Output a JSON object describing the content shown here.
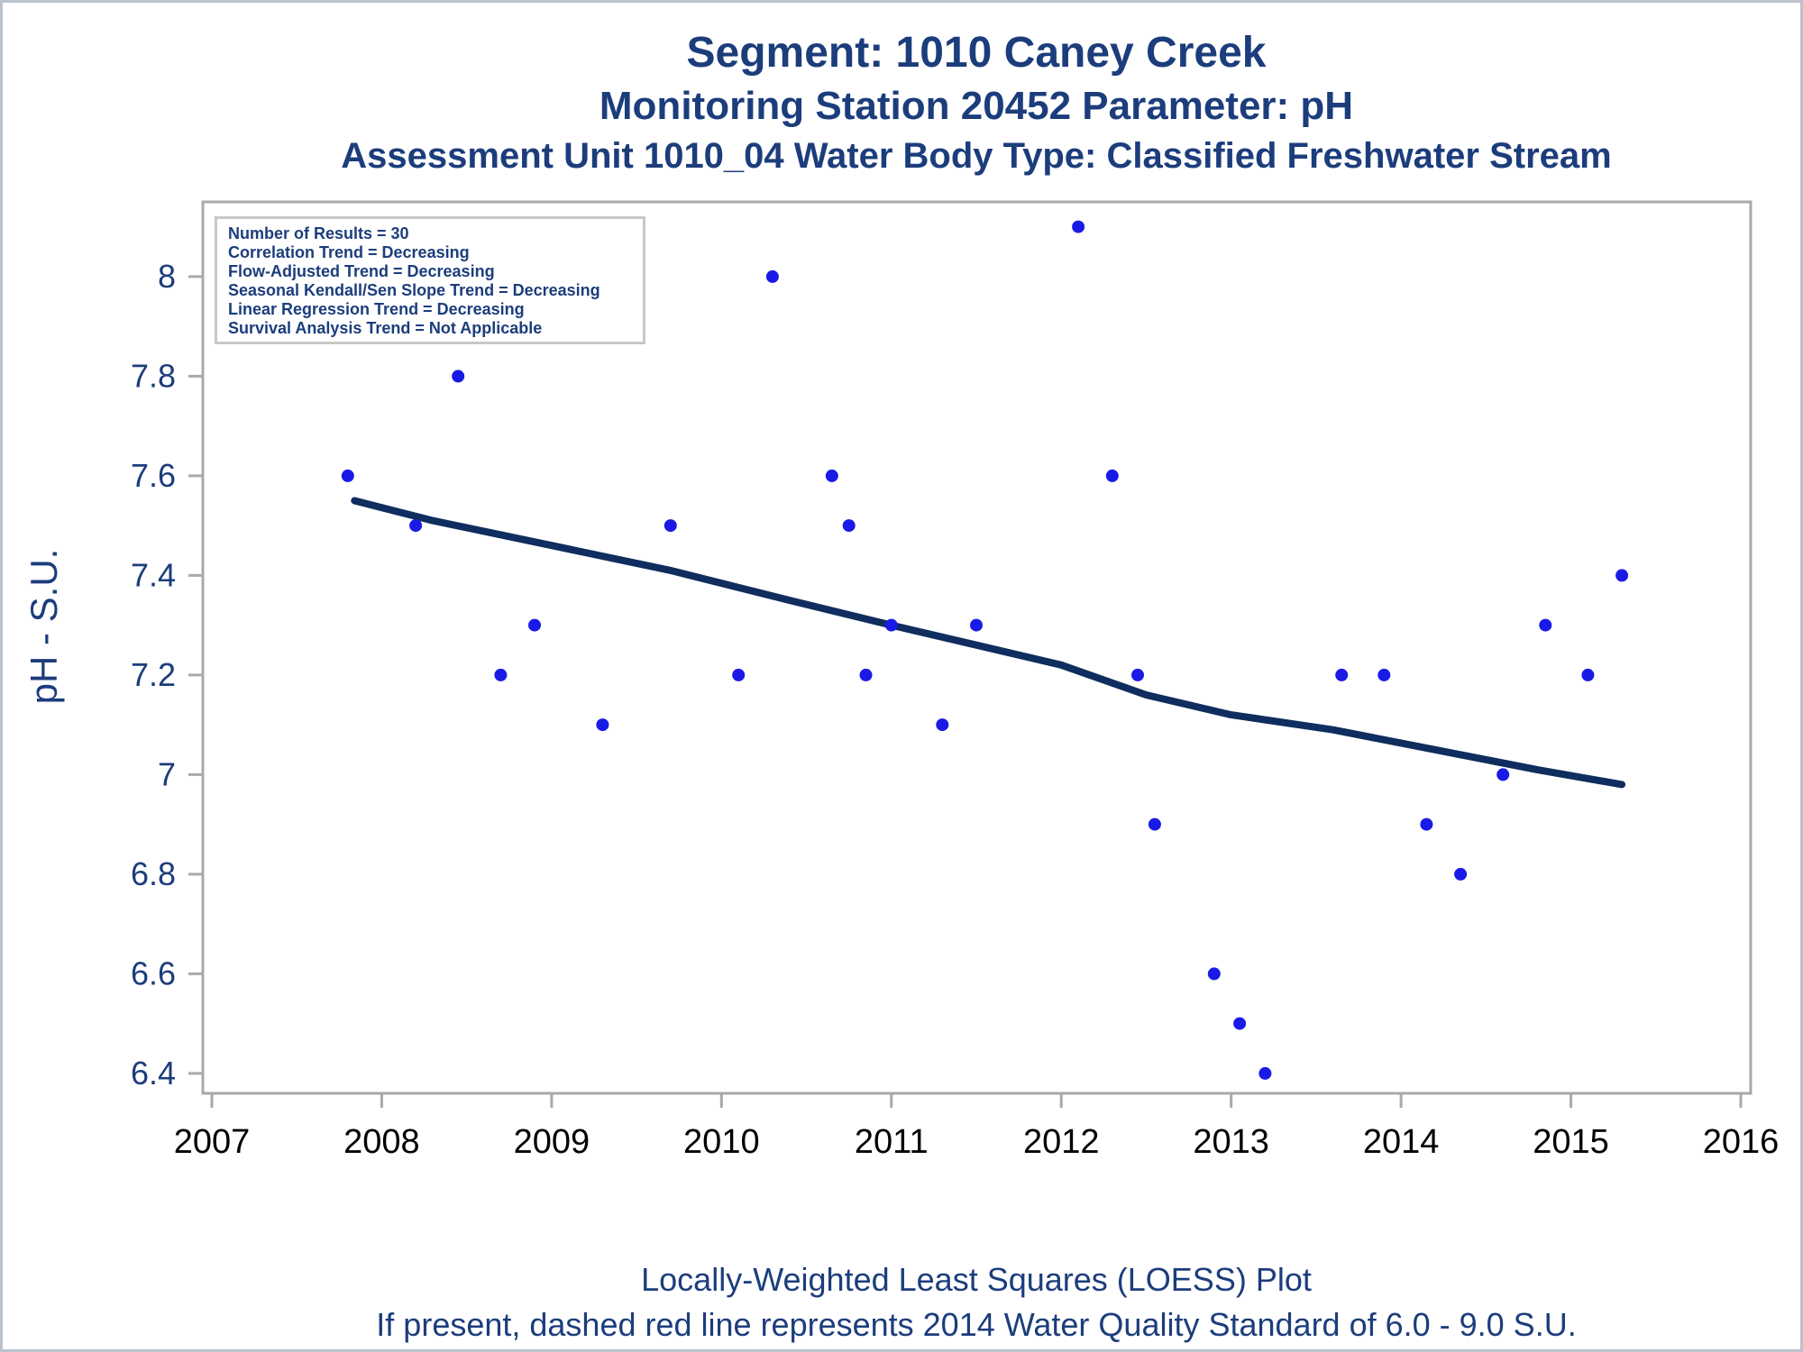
{
  "titles": {
    "line1": "Segment: 1010  Caney Creek",
    "line2": "Monitoring Station 20452 Parameter: pH",
    "line3": "Assessment Unit 1010_04   Water Body Type: Classified Freshwater Stream"
  },
  "stats_box": {
    "lines": [
      "Number of Results = 30",
      "Correlation Trend = Decreasing",
      "Flow-Adjusted Trend = Decreasing",
      "Seasonal Kendall/Sen Slope Trend = Decreasing",
      "Linear Regression Trend = Decreasing",
      "Survival Analysis Trend = Not Applicable"
    ]
  },
  "footer": {
    "line1": "Locally-Weighted Least Squares (LOESS) Plot",
    "line2": "If present, dashed red line represents 2014 Water Quality Standard of 6.0 - 9.0 S.U."
  },
  "colors": {
    "navy_text": "#1c3d7c",
    "x_tick_label": "#000000",
    "point_fill": "#1a1ae6",
    "loess_line": "#0f2d5e",
    "axis_gray": "#a9a9a9",
    "stats_border": "#c8c8c8",
    "frame": "#b9c2cd"
  },
  "chart_data": {
    "type": "scatter",
    "title": "Segment: 1010 Caney Creek — Monitoring Station 20452 — Parameter: pH",
    "xlabel": "",
    "ylabel": "pH - S.U.",
    "xlim": [
      2007,
      2016
    ],
    "ylim": [
      6.36,
      8.15
    ],
    "grid": false,
    "legend_position": "top-left stats box",
    "x_ticks": [
      2007,
      2008,
      2009,
      2010,
      2011,
      2012,
      2013,
      2014,
      2015,
      2016
    ],
    "y_ticks": [
      {
        "value": 8.0,
        "label": "8"
      },
      {
        "value": 7.8,
        "label": "7.8"
      },
      {
        "value": 7.6,
        "label": "7.6"
      },
      {
        "value": 7.4,
        "label": "7.4"
      },
      {
        "value": 7.2,
        "label": "7.2"
      },
      {
        "value": 7.0,
        "label": "7"
      },
      {
        "value": 6.8,
        "label": "6.8"
      },
      {
        "value": 6.6,
        "label": "6.6"
      },
      {
        "value": 6.4,
        "label": "6.4"
      }
    ],
    "series": [
      {
        "name": "pH observations",
        "type": "scatter",
        "points": [
          {
            "x": 2007.8,
            "y": 7.6
          },
          {
            "x": 2008.2,
            "y": 7.5
          },
          {
            "x": 2008.45,
            "y": 7.8
          },
          {
            "x": 2008.7,
            "y": 7.2
          },
          {
            "x": 2008.9,
            "y": 7.3
          },
          {
            "x": 2009.3,
            "y": 7.1
          },
          {
            "x": 2009.7,
            "y": 7.5
          },
          {
            "x": 2010.1,
            "y": 7.2
          },
          {
            "x": 2010.3,
            "y": 8.0
          },
          {
            "x": 2010.65,
            "y": 7.6
          },
          {
            "x": 2010.75,
            "y": 7.5
          },
          {
            "x": 2010.85,
            "y": 7.2
          },
          {
            "x": 2011.0,
            "y": 7.3
          },
          {
            "x": 2011.3,
            "y": 7.1
          },
          {
            "x": 2011.5,
            "y": 7.3
          },
          {
            "x": 2012.1,
            "y": 8.1
          },
          {
            "x": 2012.3,
            "y": 7.6
          },
          {
            "x": 2012.45,
            "y": 7.2
          },
          {
            "x": 2012.55,
            "y": 6.9
          },
          {
            "x": 2012.9,
            "y": 6.6
          },
          {
            "x": 2013.05,
            "y": 6.5
          },
          {
            "x": 2013.2,
            "y": 6.4
          },
          {
            "x": 2013.65,
            "y": 7.2
          },
          {
            "x": 2013.9,
            "y": 7.2
          },
          {
            "x": 2014.15,
            "y": 6.9
          },
          {
            "x": 2014.35,
            "y": 6.8
          },
          {
            "x": 2014.6,
            "y": 7.0
          },
          {
            "x": 2014.85,
            "y": 7.3
          },
          {
            "x": 2015.1,
            "y": 7.2
          },
          {
            "x": 2015.3,
            "y": 7.4
          }
        ]
      },
      {
        "name": "LOESS trend",
        "type": "line",
        "points": [
          {
            "x": 2007.84,
            "y": 7.55
          },
          {
            "x": 2008.3,
            "y": 7.51
          },
          {
            "x": 2009.0,
            "y": 7.46
          },
          {
            "x": 2009.7,
            "y": 7.41
          },
          {
            "x": 2010.4,
            "y": 7.35
          },
          {
            "x": 2011.0,
            "y": 7.3
          },
          {
            "x": 2011.5,
            "y": 7.26
          },
          {
            "x": 2012.0,
            "y": 7.22
          },
          {
            "x": 2012.5,
            "y": 7.16
          },
          {
            "x": 2013.0,
            "y": 7.12
          },
          {
            "x": 2013.6,
            "y": 7.09
          },
          {
            "x": 2014.2,
            "y": 7.05
          },
          {
            "x": 2014.8,
            "y": 7.01
          },
          {
            "x": 2015.3,
            "y": 6.98
          }
        ]
      }
    ]
  },
  "y_axis": {
    "label": "pH - S.U."
  }
}
